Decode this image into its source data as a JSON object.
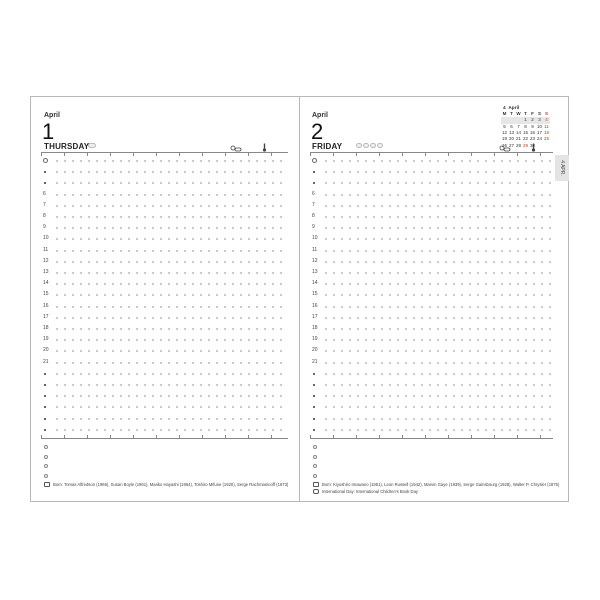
{
  "left_page": {
    "month": "April",
    "day_number": "1",
    "weekday": "THURSDAY",
    "born_note": "Born: Tomas Alfredson (1965), Susan Boyle (1961), Mariko Hayashi (1954), Toshiro Mifune (1920), Serge Rachmaninoff (1873)"
  },
  "right_page": {
    "month": "April",
    "day_number": "2",
    "weekday": "FRIDAY",
    "born_note": "Born: Kiyoshiro Imawano (1951), Leon Russell (1942), Marvin Gaye (1939), Serge Gainsbourg (1928), Walter P. Chrysler (1875)",
    "event_note": "International Day: International Children's Book Day"
  },
  "hour_labels": [
    "clock",
    "•",
    "•",
    "6",
    "7",
    "8",
    "9",
    "10",
    "11",
    "12",
    "13",
    "14",
    "15",
    "16",
    "17",
    "18",
    "19",
    "20",
    "21",
    "•",
    "•",
    "•",
    "•",
    "•",
    "•"
  ],
  "mini_calendar": {
    "title_number": "4",
    "title": "April",
    "weekdays": [
      "M",
      "T",
      "W",
      "T",
      "F",
      "S",
      "S"
    ],
    "weeks": [
      [
        "",
        "",
        "",
        "1",
        "2",
        "3",
        "4"
      ],
      [
        "5",
        "6",
        "7",
        "8",
        "9",
        "10",
        "11"
      ],
      [
        "12",
        "13",
        "14",
        "15",
        "16",
        "17",
        "18"
      ],
      [
        "19",
        "20",
        "21",
        "22",
        "23",
        "24",
        "25"
      ],
      [
        "26",
        "27",
        "28",
        "29",
        "30",
        "",
        ""
      ]
    ],
    "red_dates": [
      "4",
      "11",
      "18",
      "25",
      "29"
    ]
  },
  "side_tab": {
    "label": "4  APR."
  },
  "icons": {
    "weather": "cloud-sun-icon",
    "temperature": "thermometer-icon",
    "birthday": "cake-icon",
    "event": "speech-bubble-icon"
  },
  "colors": {
    "holiday": "#c0392b",
    "border": "#b8b8b8",
    "tab": "#e4e4e4"
  }
}
